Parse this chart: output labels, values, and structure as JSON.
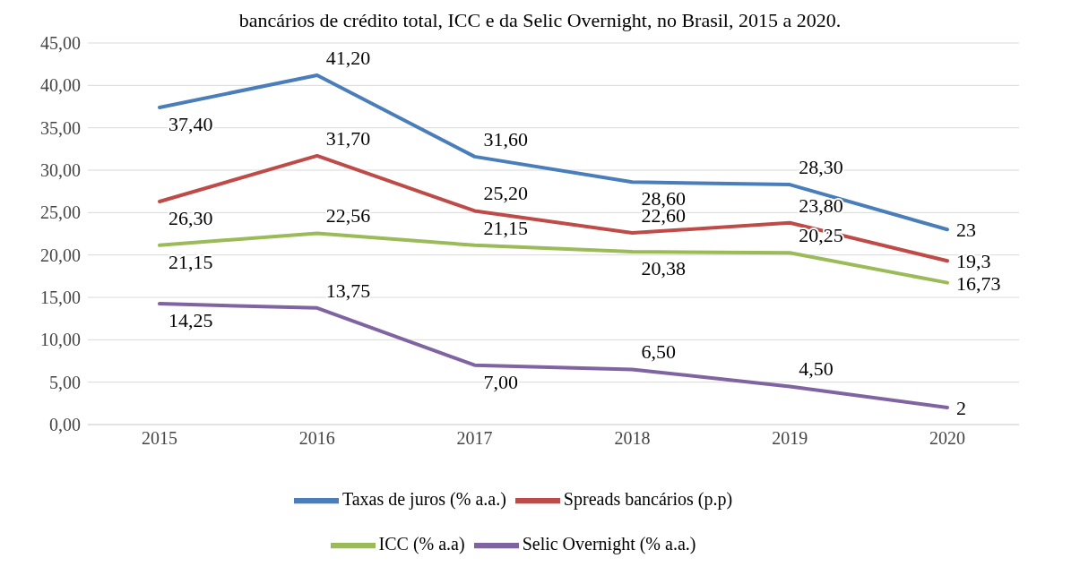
{
  "chart_data": {
    "type": "line",
    "title": "bancários de crédito total, ICC e da Selic Overnight, no Brasil, 2015 a 2020.",
    "categories": [
      "2015",
      "2016",
      "2017",
      "2018",
      "2019",
      "2020"
    ],
    "series": [
      {
        "name": "Taxas de juros (% a.a.)",
        "color": "#4a7ebb",
        "values": [
          37.4,
          41.2,
          31.6,
          28.6,
          28.3,
          23
        ],
        "value_labels": [
          "37,40",
          "41,20",
          "31,60",
          "28,60",
          "28,30",
          "23"
        ]
      },
      {
        "name": "Spreads bancários (p.p)",
        "color": "#be4b48",
        "values": [
          26.3,
          31.7,
          25.2,
          22.6,
          23.8,
          19.3
        ],
        "value_labels": [
          "26,30",
          "31,70",
          "25,20",
          "22,60",
          "23,80",
          "19,3"
        ]
      },
      {
        "name": "ICC (% a.a)",
        "color": "#9bbb59",
        "values": [
          21.15,
          22.56,
          21.15,
          20.38,
          20.25,
          16.73
        ],
        "value_labels": [
          "21,15",
          "22,56",
          "21,15",
          "20,38",
          "20,25",
          "16,73"
        ]
      },
      {
        "name": "Selic Overnight (% a.a.)",
        "color": "#8064a2",
        "values": [
          14.25,
          13.75,
          7,
          6.5,
          4.5,
          2
        ],
        "value_labels": [
          "14,25",
          "13,75",
          "7,00",
          "6,50",
          "4,50",
          "2"
        ]
      }
    ],
    "ylim": [
      0,
      45
    ],
    "yticks": [
      {
        "value": 0,
        "label": "0,00"
      },
      {
        "value": 5,
        "label": "5,00"
      },
      {
        "value": 10,
        "label": "10,00"
      },
      {
        "value": 15,
        "label": "15,00"
      },
      {
        "value": 20,
        "label": "20,00"
      },
      {
        "value": 25,
        "label": "25,00"
      },
      {
        "value": 30,
        "label": "30,00"
      },
      {
        "value": 35,
        "label": "35,00"
      },
      {
        "value": 40,
        "label": "40,00"
      },
      {
        "value": 45,
        "label": "45,00"
      }
    ],
    "grid": "y",
    "legend": "bottom",
    "marker": "none",
    "line_style": "solid"
  }
}
